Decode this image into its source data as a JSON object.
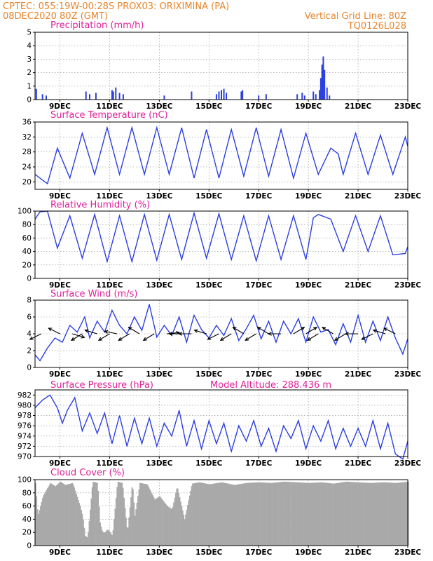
{
  "header": {
    "left_line1": "CPTEC:    055:19W-00:28S    PROX03: ORIXIMINA (PA)",
    "left_line2": "08DEC2020 80Z (GMT)",
    "right_line2": "Vertical Grid Line: 80Z",
    "right_line3": "TQ0126L028"
  },
  "colors": {
    "header": "#e8842a",
    "title": "#e0209a",
    "series": "#2b3fe0",
    "arrows": "#000000",
    "cloud": "#a9a9a9",
    "grid": "#888888"
  },
  "x_axis": {
    "ticks": [
      "9DEC",
      "11DEC",
      "13DEC",
      "15DEC",
      "17DEC",
      "19DEC",
      "21DEC",
      "23DEC"
    ]
  },
  "chart_data": [
    {
      "type": "bar",
      "title": "Precipitation (mm/h)",
      "ylim": [
        0,
        5
      ],
      "yticks": [
        "0",
        "1",
        "2",
        "3",
        "4",
        "5"
      ],
      "x_unit": "days since 08DEC 08Z",
      "x": [
        0.05,
        0.3,
        0.45,
        2.05,
        2.2,
        2.45,
        3.1,
        3.15,
        3.25,
        3.4,
        3.55,
        5.2,
        6.3,
        7.3,
        7.4,
        7.5,
        7.6,
        7.7,
        8.3,
        8.35,
        9.0,
        9.3,
        10.55,
        10.75,
        10.85,
        11.2,
        11.3,
        11.45,
        11.5,
        11.55,
        11.6,
        11.65,
        11.75,
        11.85
      ],
      "values": [
        0.8,
        0.4,
        0.3,
        0.6,
        0.4,
        0.5,
        0.7,
        0.6,
        0.9,
        0.5,
        0.4,
        0.3,
        0.6,
        0.4,
        0.6,
        0.7,
        0.8,
        0.5,
        0.6,
        0.7,
        0.3,
        0.4,
        0.4,
        0.5,
        0.3,
        0.6,
        0.4,
        0.7,
        1.6,
        2.6,
        3.2,
        2.2,
        0.9,
        0.3
      ]
    },
    {
      "type": "line",
      "title": "Surface Temperature (nC)",
      "ylim": [
        18,
        36
      ],
      "yticks": [
        "20",
        "24",
        "28",
        "32",
        "36"
      ],
      "x_unit": "days since 08DEC 08Z",
      "x": [
        0,
        0.5,
        0.9,
        1.4,
        1.9,
        2.4,
        2.9,
        3.4,
        3.9,
        4.4,
        4.9,
        5.4,
        5.9,
        6.4,
        6.9,
        7.4,
        7.9,
        8.4,
        8.9,
        9.4,
        9.9,
        10.4,
        10.9,
        11.4,
        11.9,
        12.2,
        12.4,
        12.9,
        13.4,
        13.9,
        14.4,
        14.9,
        15.0
      ],
      "values": [
        22,
        19.5,
        29,
        21,
        33,
        22,
        34.5,
        22,
        34.5,
        22,
        34.5,
        22,
        34.5,
        21,
        34,
        21,
        34,
        21.5,
        34.5,
        21.5,
        34,
        21,
        33,
        22,
        29,
        27.5,
        22,
        33,
        22,
        32.5,
        22,
        32,
        29.5
      ]
    },
    {
      "type": "line",
      "title": "Relative Humidity (%)",
      "ylim": [
        0,
        100
      ],
      "yticks": [
        "0",
        "20",
        "40",
        "60",
        "80",
        "100"
      ],
      "x_unit": "days since 08DEC 08Z",
      "x": [
        0,
        0.2,
        0.5,
        0.9,
        1.4,
        1.9,
        2.4,
        2.9,
        3.4,
        3.9,
        4.4,
        4.9,
        5.4,
        5.9,
        6.4,
        6.9,
        7.4,
        7.9,
        8.4,
        8.9,
        9.4,
        9.9,
        10.4,
        10.9,
        11.2,
        11.4,
        11.9,
        12.4,
        12.9,
        13.4,
        13.9,
        14.4,
        14.9,
        15.0
      ],
      "values": [
        88,
        99,
        100,
        45,
        93,
        30,
        95,
        25,
        93,
        25,
        95,
        27,
        95,
        28,
        97,
        30,
        96,
        28,
        93,
        26,
        93,
        28,
        93,
        28,
        90,
        95,
        88,
        40,
        93,
        40,
        93,
        35,
        37,
        47
      ]
    },
    {
      "type": "line",
      "title": "Surface Wind (m/s)",
      "ylim": [
        0,
        8
      ],
      "yticks": [
        "0",
        "2",
        "4",
        "6",
        "8"
      ],
      "x_unit": "days since 08DEC 08Z",
      "x": [
        0,
        0.2,
        0.5,
        0.8,
        1.1,
        1.4,
        1.7,
        2.0,
        2.2,
        2.5,
        2.8,
        3.1,
        3.4,
        3.7,
        4.0,
        4.3,
        4.6,
        4.9,
        5.2,
        5.5,
        5.8,
        6.1,
        6.4,
        6.7,
        7.0,
        7.3,
        7.6,
        7.9,
        8.2,
        8.5,
        8.8,
        9.1,
        9.4,
        9.7,
        10.0,
        10.3,
        10.6,
        10.9,
        11.2,
        11.5,
        11.8,
        12.1,
        12.4,
        12.7,
        13.0,
        13.3,
        13.6,
        13.9,
        14.2,
        14.5,
        14.8,
        15.0
      ],
      "values": [
        1.5,
        0.8,
        2.3,
        3.5,
        3.0,
        5.0,
        4.2,
        6.0,
        3.5,
        5.5,
        4.2,
        6.8,
        5.0,
        4.0,
        6.0,
        4.4,
        7.5,
        3.6,
        5.0,
        3.8,
        6.0,
        3.0,
        6.2,
        4.5,
        3.5,
        5.0,
        3.8,
        5.8,
        3.2,
        4.6,
        6.2,
        3.4,
        5.5,
        3.0,
        5.5,
        4.0,
        5.8,
        3.0,
        6.0,
        4.2,
        4.5,
        2.7,
        5.2,
        3.0,
        6.2,
        3.0,
        5.5,
        3.2,
        6.0,
        3.5,
        1.6,
        3.4
      ],
      "arrows_x": [
        0.25,
        1.0,
        1.5,
        1.9,
        2.5,
        3.0,
        3.3,
        3.8,
        4.2,
        4.8,
        5.3,
        5.9,
        6.3,
        6.9,
        7.4,
        7.9,
        8.4,
        8.9,
        9.4,
        9.9,
        10.4,
        10.9,
        11.4,
        12.0,
        12.5,
        13.0,
        13.6,
        14.1,
        14.5
      ],
      "arrows_u": [
        -1,
        -1,
        1,
        -1,
        -1,
        -1,
        -1,
        -1,
        -1,
        -1,
        1,
        -1,
        -1,
        -1,
        -1,
        -1,
        -1,
        -1,
        -1,
        -1,
        1,
        1,
        -1,
        -1,
        -1,
        -1,
        -1,
        -1,
        -1
      ],
      "arrows_v": [
        -0.5,
        0.5,
        -0.3,
        -0.6,
        0.3,
        -0.6,
        0.2,
        -0.6,
        0.6,
        -0.6,
        0.1,
        0,
        0,
        0.3,
        -0.5,
        -0.6,
        0.6,
        -0.6,
        0.6,
        0,
        0.6,
        0.6,
        -0.6,
        0.6,
        -0.6,
        0,
        -0.5,
        0.3,
        0.5
      ]
    },
    {
      "type": "line",
      "title": "Surface Pressure (hPa)",
      "annotation": "Model Altitude: 288.436 m",
      "ylim": [
        970,
        983
      ],
      "yticks": [
        "970",
        "972",
        "974",
        "976",
        "978",
        "980",
        "982"
      ],
      "x_unit": "days since 08DEC 08Z",
      "x": [
        0,
        0.3,
        0.6,
        0.9,
        1.1,
        1.3,
        1.6,
        1.9,
        2.2,
        2.5,
        2.8,
        3.1,
        3.4,
        3.7,
        4.0,
        4.3,
        4.6,
        4.9,
        5.2,
        5.5,
        5.8,
        6.1,
        6.4,
        6.7,
        7.0,
        7.3,
        7.6,
        7.9,
        8.2,
        8.5,
        8.8,
        9.1,
        9.4,
        9.7,
        10.0,
        10.3,
        10.6,
        10.9,
        11.2,
        11.5,
        11.8,
        12.1,
        12.4,
        12.7,
        13.0,
        13.3,
        13.6,
        13.9,
        14.2,
        14.5,
        14.8,
        15.0
      ],
      "values": [
        979.5,
        981,
        982,
        979.5,
        976.5,
        979,
        981.5,
        975,
        978.5,
        974.5,
        978.5,
        972.5,
        978,
        972,
        977.5,
        972.5,
        977.5,
        972,
        976.5,
        974,
        979,
        972,
        977,
        971.5,
        977,
        972.5,
        976.5,
        971,
        976,
        973,
        977,
        972,
        975.5,
        971,
        976,
        973.5,
        977,
        971.5,
        976,
        973,
        977,
        971.5,
        975.5,
        972,
        975.5,
        972,
        977,
        971.5,
        976.5,
        970.5,
        969.5,
        973
      ]
    },
    {
      "type": "area",
      "title": "Cloud Cover (%)",
      "ylim": [
        0,
        100
      ],
      "yticks": [
        "0",
        "20",
        "40",
        "60",
        "80",
        "100"
      ],
      "x_unit": "days since 08DEC 08Z",
      "x": [
        0,
        0.1,
        0.3,
        0.6,
        0.8,
        1.0,
        1.2,
        1.5,
        1.8,
        1.9,
        2.0,
        2.1,
        2.3,
        2.5,
        2.6,
        2.7,
        2.8,
        2.9,
        3.1,
        3.3,
        3.5,
        3.7,
        3.9,
        4.0,
        4.2,
        4.5,
        4.8,
        5.0,
        5.3,
        5.5,
        5.7,
        6.0,
        6.3,
        6.6,
        7.0,
        7.5,
        8.0,
        8.5,
        9.0,
        9.5,
        10.0,
        10.5,
        11.0,
        11.5,
        12.0,
        12.5,
        13.0,
        13.5,
        14.0,
        14.5,
        15.0
      ],
      "values": [
        95,
        45,
        75,
        95,
        90,
        97,
        92,
        95,
        60,
        45,
        15,
        12,
        97,
        95,
        35,
        20,
        20,
        25,
        15,
        97,
        95,
        20,
        96,
        45,
        95,
        93,
        70,
        75,
        60,
        55,
        90,
        40,
        94,
        96,
        93,
        96,
        92,
        95,
        96,
        95,
        97,
        96,
        95,
        96,
        94,
        97,
        96,
        95,
        96,
        95,
        97
      ]
    }
  ]
}
